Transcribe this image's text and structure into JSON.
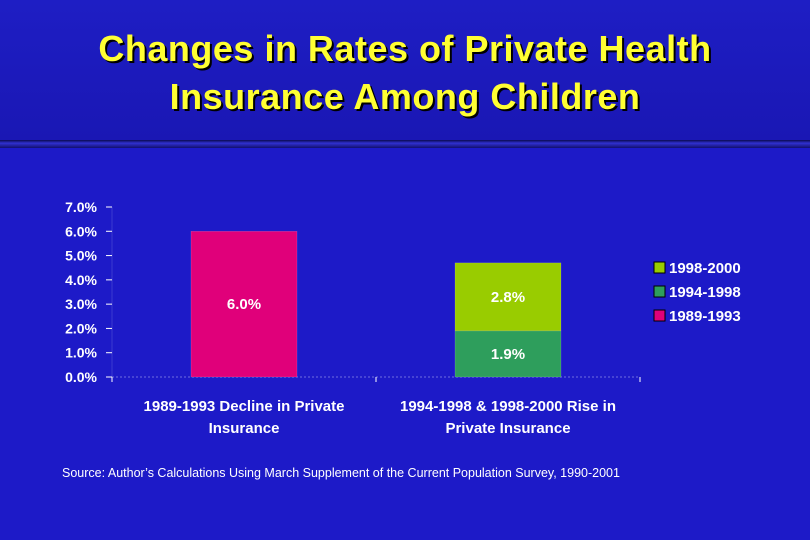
{
  "slide": {
    "title_line1": "Changes in Rates of Private Health",
    "title_line2": "Insurance Among Children",
    "source": "Source: Author’s Calculations Using March Supplement of the Current Population Survey, 1990-2001"
  },
  "colors": {
    "background": "#1d1ac8",
    "title": "#ffff33",
    "series_1989_1993": "#e0007a",
    "series_1994_1998": "#2e9e5c",
    "series_1998_2000": "#99cc00"
  },
  "chart_data": {
    "type": "bar",
    "stacked": true,
    "categories": [
      [
        "1989-1993 Decline in Private",
        "Insurance"
      ],
      [
        "1994-1998 & 1998-2000 Rise in",
        "Private Insurance"
      ]
    ],
    "series": [
      {
        "name": "1989-1993",
        "color": "#e0007a",
        "values": [
          6.0,
          0
        ],
        "labels": [
          "6.0%",
          ""
        ]
      },
      {
        "name": "1994-1998",
        "color": "#2e9e5c",
        "values": [
          0,
          1.9
        ],
        "labels": [
          "",
          "1.9%"
        ]
      },
      {
        "name": "1998-2000",
        "color": "#99cc00",
        "values": [
          0,
          2.8
        ],
        "labels": [
          "",
          "2.8%"
        ]
      }
    ],
    "legend_order": [
      "1998-2000",
      "1994-1998",
      "1989-1993"
    ],
    "legend_position": "right",
    "ylim": [
      0,
      7
    ],
    "yticks": [
      "0.0%",
      "1.0%",
      "2.0%",
      "3.0%",
      "4.0%",
      "5.0%",
      "6.0%",
      "7.0%"
    ],
    "grid": false
  }
}
